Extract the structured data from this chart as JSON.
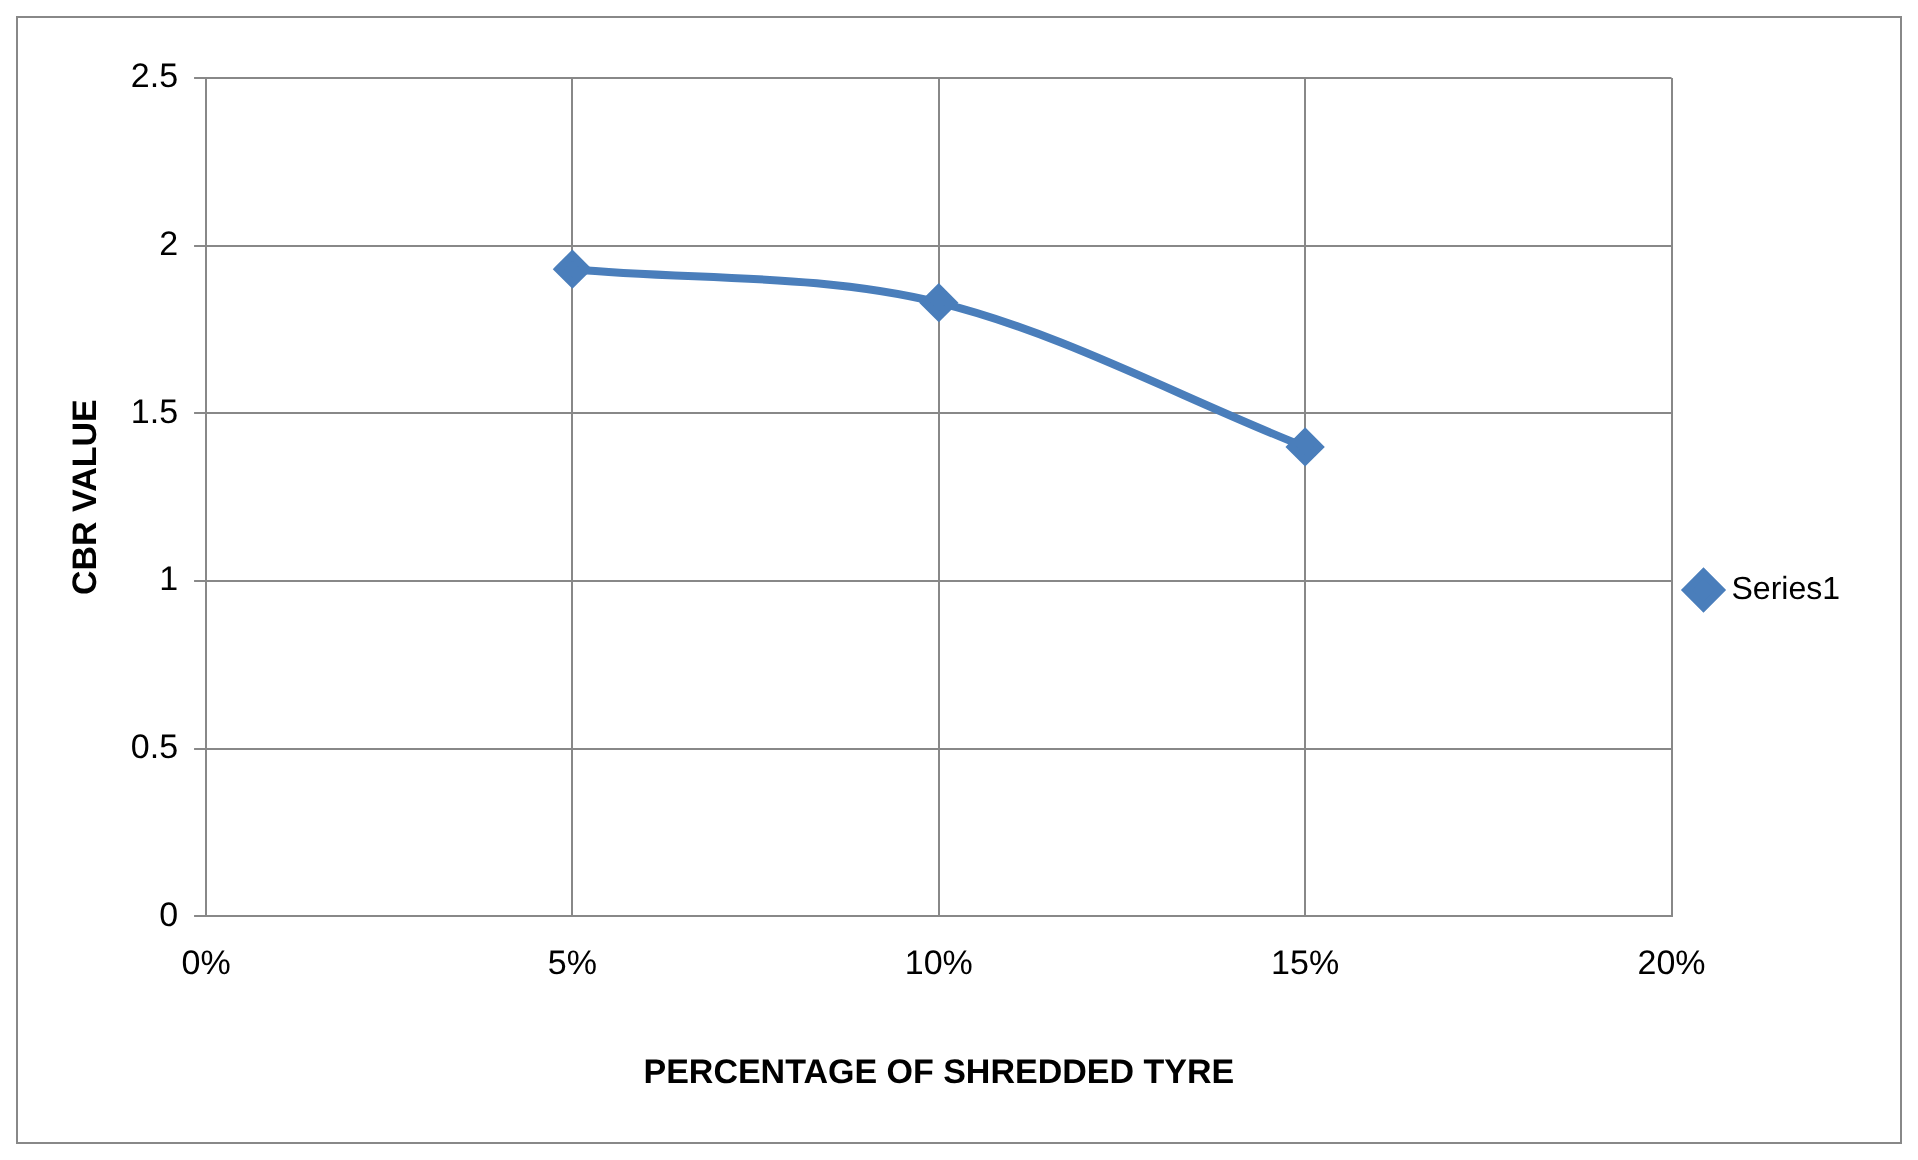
{
  "chart_data": {
    "type": "line",
    "xlabel": "PERCENTAGE OF SHREDDED TYRE",
    "ylabel": "CBR VALUE",
    "x": [
      5,
      10,
      15
    ],
    "series": [
      {
        "name": "Series1",
        "color": "#4a7ebb",
        "values": [
          1.93,
          1.83,
          1.4
        ]
      }
    ],
    "xlim": [
      0,
      20
    ],
    "xticks": [
      {
        "value": 0,
        "label": "0%"
      },
      {
        "value": 5,
        "label": "5%"
      },
      {
        "value": 10,
        "label": "10%"
      },
      {
        "value": 15,
        "label": "15%"
      },
      {
        "value": 20,
        "label": "20%"
      }
    ],
    "ylim": [
      0,
      2.5
    ],
    "yticks": [
      0,
      0.5,
      1,
      1.5,
      2,
      2.5
    ],
    "grid": true,
    "legend": "right",
    "marker": "diamond",
    "line_style": "solid"
  }
}
